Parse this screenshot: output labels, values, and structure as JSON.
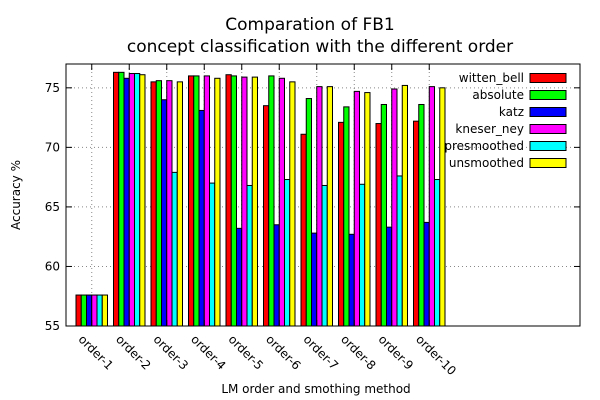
{
  "chart_data": {
    "type": "bar",
    "title_lines": [
      "Comparation of FB1",
      "concept classification with the different order"
    ],
    "xlabel": "LM order and smothing method",
    "ylabel": "Accuracy %",
    "ylim": [
      55,
      77
    ],
    "yticks": [
      55,
      60,
      65,
      70,
      75
    ],
    "grid": true,
    "legend_position": "top-right",
    "categories": [
      "order-1",
      "order-2",
      "order-3",
      "order-4",
      "order-5",
      "order-6",
      "order-7",
      "order-8",
      "order-9",
      "order-10"
    ],
    "series": [
      {
        "name": "witten_bell",
        "color": "#ff0000",
        "values": [
          57.6,
          76.3,
          75.5,
          76.0,
          76.1,
          73.5,
          71.1,
          72.1,
          72.0,
          72.2
        ]
      },
      {
        "name": "absolute",
        "color": "#00ff00",
        "values": [
          57.6,
          76.3,
          75.6,
          76.0,
          76.0,
          76.0,
          74.1,
          73.4,
          73.6,
          73.6
        ]
      },
      {
        "name": "katz",
        "color": "#0000ff",
        "values": [
          57.6,
          75.8,
          74.0,
          73.1,
          63.2,
          63.5,
          62.8,
          62.7,
          63.3,
          63.7
        ]
      },
      {
        "name": "kneser_ney",
        "color": "#ff00ff",
        "values": [
          57.6,
          76.2,
          75.6,
          76.0,
          75.9,
          75.8,
          75.1,
          74.7,
          74.9,
          75.1
        ]
      },
      {
        "name": "presmoothed",
        "color": "#00ffff",
        "values": [
          57.6,
          76.2,
          67.9,
          67.0,
          66.8,
          67.3,
          66.8,
          66.9,
          67.6,
          67.3
        ]
      },
      {
        "name": "unsmoothed",
        "color": "#ffff00",
        "values": [
          57.6,
          76.1,
          75.5,
          75.8,
          75.9,
          75.5,
          75.1,
          74.6,
          75.2,
          75.0
        ]
      }
    ]
  }
}
